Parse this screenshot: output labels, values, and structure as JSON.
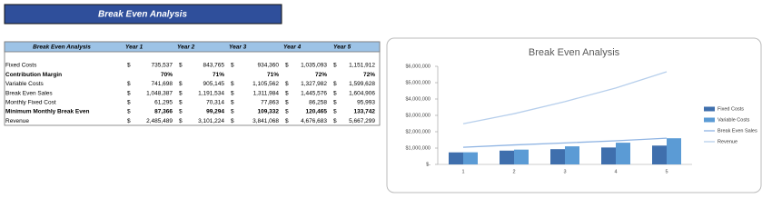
{
  "banner": {
    "title": "Break Even Analysis"
  },
  "table": {
    "header": [
      "Break Even Analysis",
      "Year 1",
      "Year 2",
      "Year 3",
      "Year 4",
      "Year 5"
    ],
    "rows": [
      {
        "label": "Fixed Costs",
        "symbol": "$",
        "cells": [
          "735,537",
          "843,765",
          "934,360",
          "1,035,093",
          "1,151,912"
        ]
      },
      {
        "label": "Contribution Margin",
        "bold": true,
        "cells": [
          "70%",
          "71%",
          "71%",
          "72%",
          "72%"
        ]
      },
      {
        "label": "Variable Costs",
        "symbol": "$",
        "cells": [
          "741,698",
          "905,145",
          "1,105,562",
          "1,327,982",
          "1,599,628"
        ]
      },
      {
        "label": "Break Even Sales",
        "symbol": "$",
        "cells": [
          "1,048,387",
          "1,191,534",
          "1,311,984",
          "1,445,576",
          "1,604,906"
        ]
      },
      {
        "label": "Monthly Fixed Cost",
        "symbol": "$",
        "cells": [
          "61,295",
          "70,314",
          "77,863",
          "86,258",
          "95,993"
        ]
      },
      {
        "label": "Minimum Monthly Break Even",
        "symbol": "$",
        "bold": true,
        "cells": [
          "87,366",
          "99,294",
          "109,332",
          "120,465",
          "133,742"
        ]
      },
      {
        "label": "Revenue",
        "symbol": "$",
        "cells": [
          "2,485,489",
          "3,101,224",
          "3,841,068",
          "4,676,683",
          "5,667,299"
        ]
      }
    ]
  },
  "chart_data": {
    "type": "combo",
    "title": "Break Even Analysis",
    "categories": [
      "1",
      "2",
      "3",
      "4",
      "5"
    ],
    "series": [
      {
        "name": "Fixed Costs",
        "kind": "bar",
        "color": "#3f6fad",
        "values": [
          735537,
          843765,
          934360,
          1035093,
          1151912
        ]
      },
      {
        "name": "Variable Costs",
        "kind": "bar",
        "color": "#5b9bd5",
        "values": [
          741698,
          905145,
          1105562,
          1327982,
          1599628
        ]
      },
      {
        "name": "Break Even Sales",
        "kind": "line",
        "color": "#8fb4e3",
        "values": [
          1048387,
          1191534,
          1311984,
          1445576,
          1604906
        ]
      },
      {
        "name": "Revenue",
        "kind": "line",
        "color": "#b7cfec",
        "values": [
          2485489,
          3101224,
          3841068,
          4676683,
          5667299
        ]
      }
    ],
    "ylim": [
      0,
      6000000
    ],
    "yticks": [
      {
        "value": 0,
        "label": "$-"
      },
      {
        "value": 1000000,
        "label": "$1,000,000"
      },
      {
        "value": 2000000,
        "label": "$2,000,000"
      },
      {
        "value": 3000000,
        "label": "$3,000,000"
      },
      {
        "value": 4000000,
        "label": "$4,000,000"
      },
      {
        "value": 5000000,
        "label": "$5,000,000"
      },
      {
        "value": 6000000,
        "label": "$6,000,000"
      }
    ],
    "grid": false,
    "legend": "right"
  }
}
